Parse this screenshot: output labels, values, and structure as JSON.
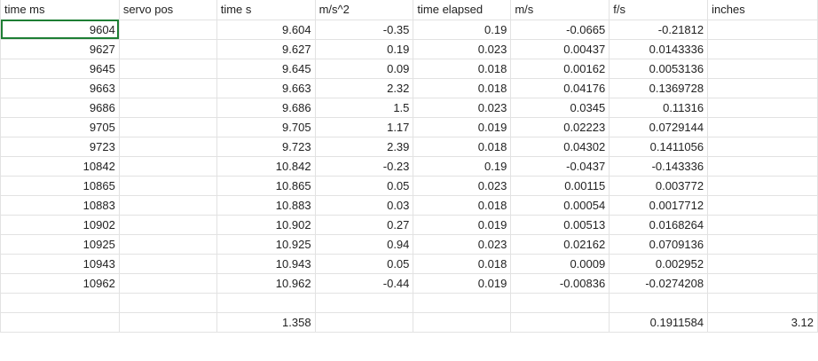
{
  "columns": [
    "time ms",
    "servo pos",
    "time s",
    "m/s^2",
    "time elapsed",
    "m/s",
    "f/s",
    "inches"
  ],
  "rows": [
    [
      "9604",
      "",
      "9.604",
      "-0.35",
      "0.19",
      "-0.0665",
      "-0.21812",
      ""
    ],
    [
      "9627",
      "",
      "9.627",
      "0.19",
      "0.023",
      "0.00437",
      "0.0143336",
      ""
    ],
    [
      "9645",
      "",
      "9.645",
      "0.09",
      "0.018",
      "0.00162",
      "0.0053136",
      ""
    ],
    [
      "9663",
      "",
      "9.663",
      "2.32",
      "0.018",
      "0.04176",
      "0.1369728",
      ""
    ],
    [
      "9686",
      "",
      "9.686",
      "1.5",
      "0.023",
      "0.0345",
      "0.11316",
      ""
    ],
    [
      "9705",
      "",
      "9.705",
      "1.17",
      "0.019",
      "0.02223",
      "0.0729144",
      ""
    ],
    [
      "9723",
      "",
      "9.723",
      "2.39",
      "0.018",
      "0.04302",
      "0.1411056",
      ""
    ],
    [
      "10842",
      "",
      "10.842",
      "-0.23",
      "0.19",
      "-0.0437",
      "-0.143336",
      ""
    ],
    [
      "10865",
      "",
      "10.865",
      "0.05",
      "0.023",
      "0.00115",
      "0.003772",
      ""
    ],
    [
      "10883",
      "",
      "10.883",
      "0.03",
      "0.018",
      "0.00054",
      "0.0017712",
      ""
    ],
    [
      "10902",
      "",
      "10.902",
      "0.27",
      "0.019",
      "0.00513",
      "0.0168264",
      ""
    ],
    [
      "10925",
      "",
      "10.925",
      "0.94",
      "0.023",
      "0.02162",
      "0.0709136",
      ""
    ],
    [
      "10943",
      "",
      "10.943",
      "0.05",
      "0.018",
      "0.0009",
      "0.002952",
      ""
    ],
    [
      "10962",
      "",
      "10.962",
      "-0.44",
      "0.019",
      "-0.00836",
      "-0.0274208",
      ""
    ]
  ],
  "totals": [
    "",
    "",
    "1.358",
    "",
    "",
    "",
    "0.1911584",
    "3.12"
  ],
  "selected_cell": "9604"
}
